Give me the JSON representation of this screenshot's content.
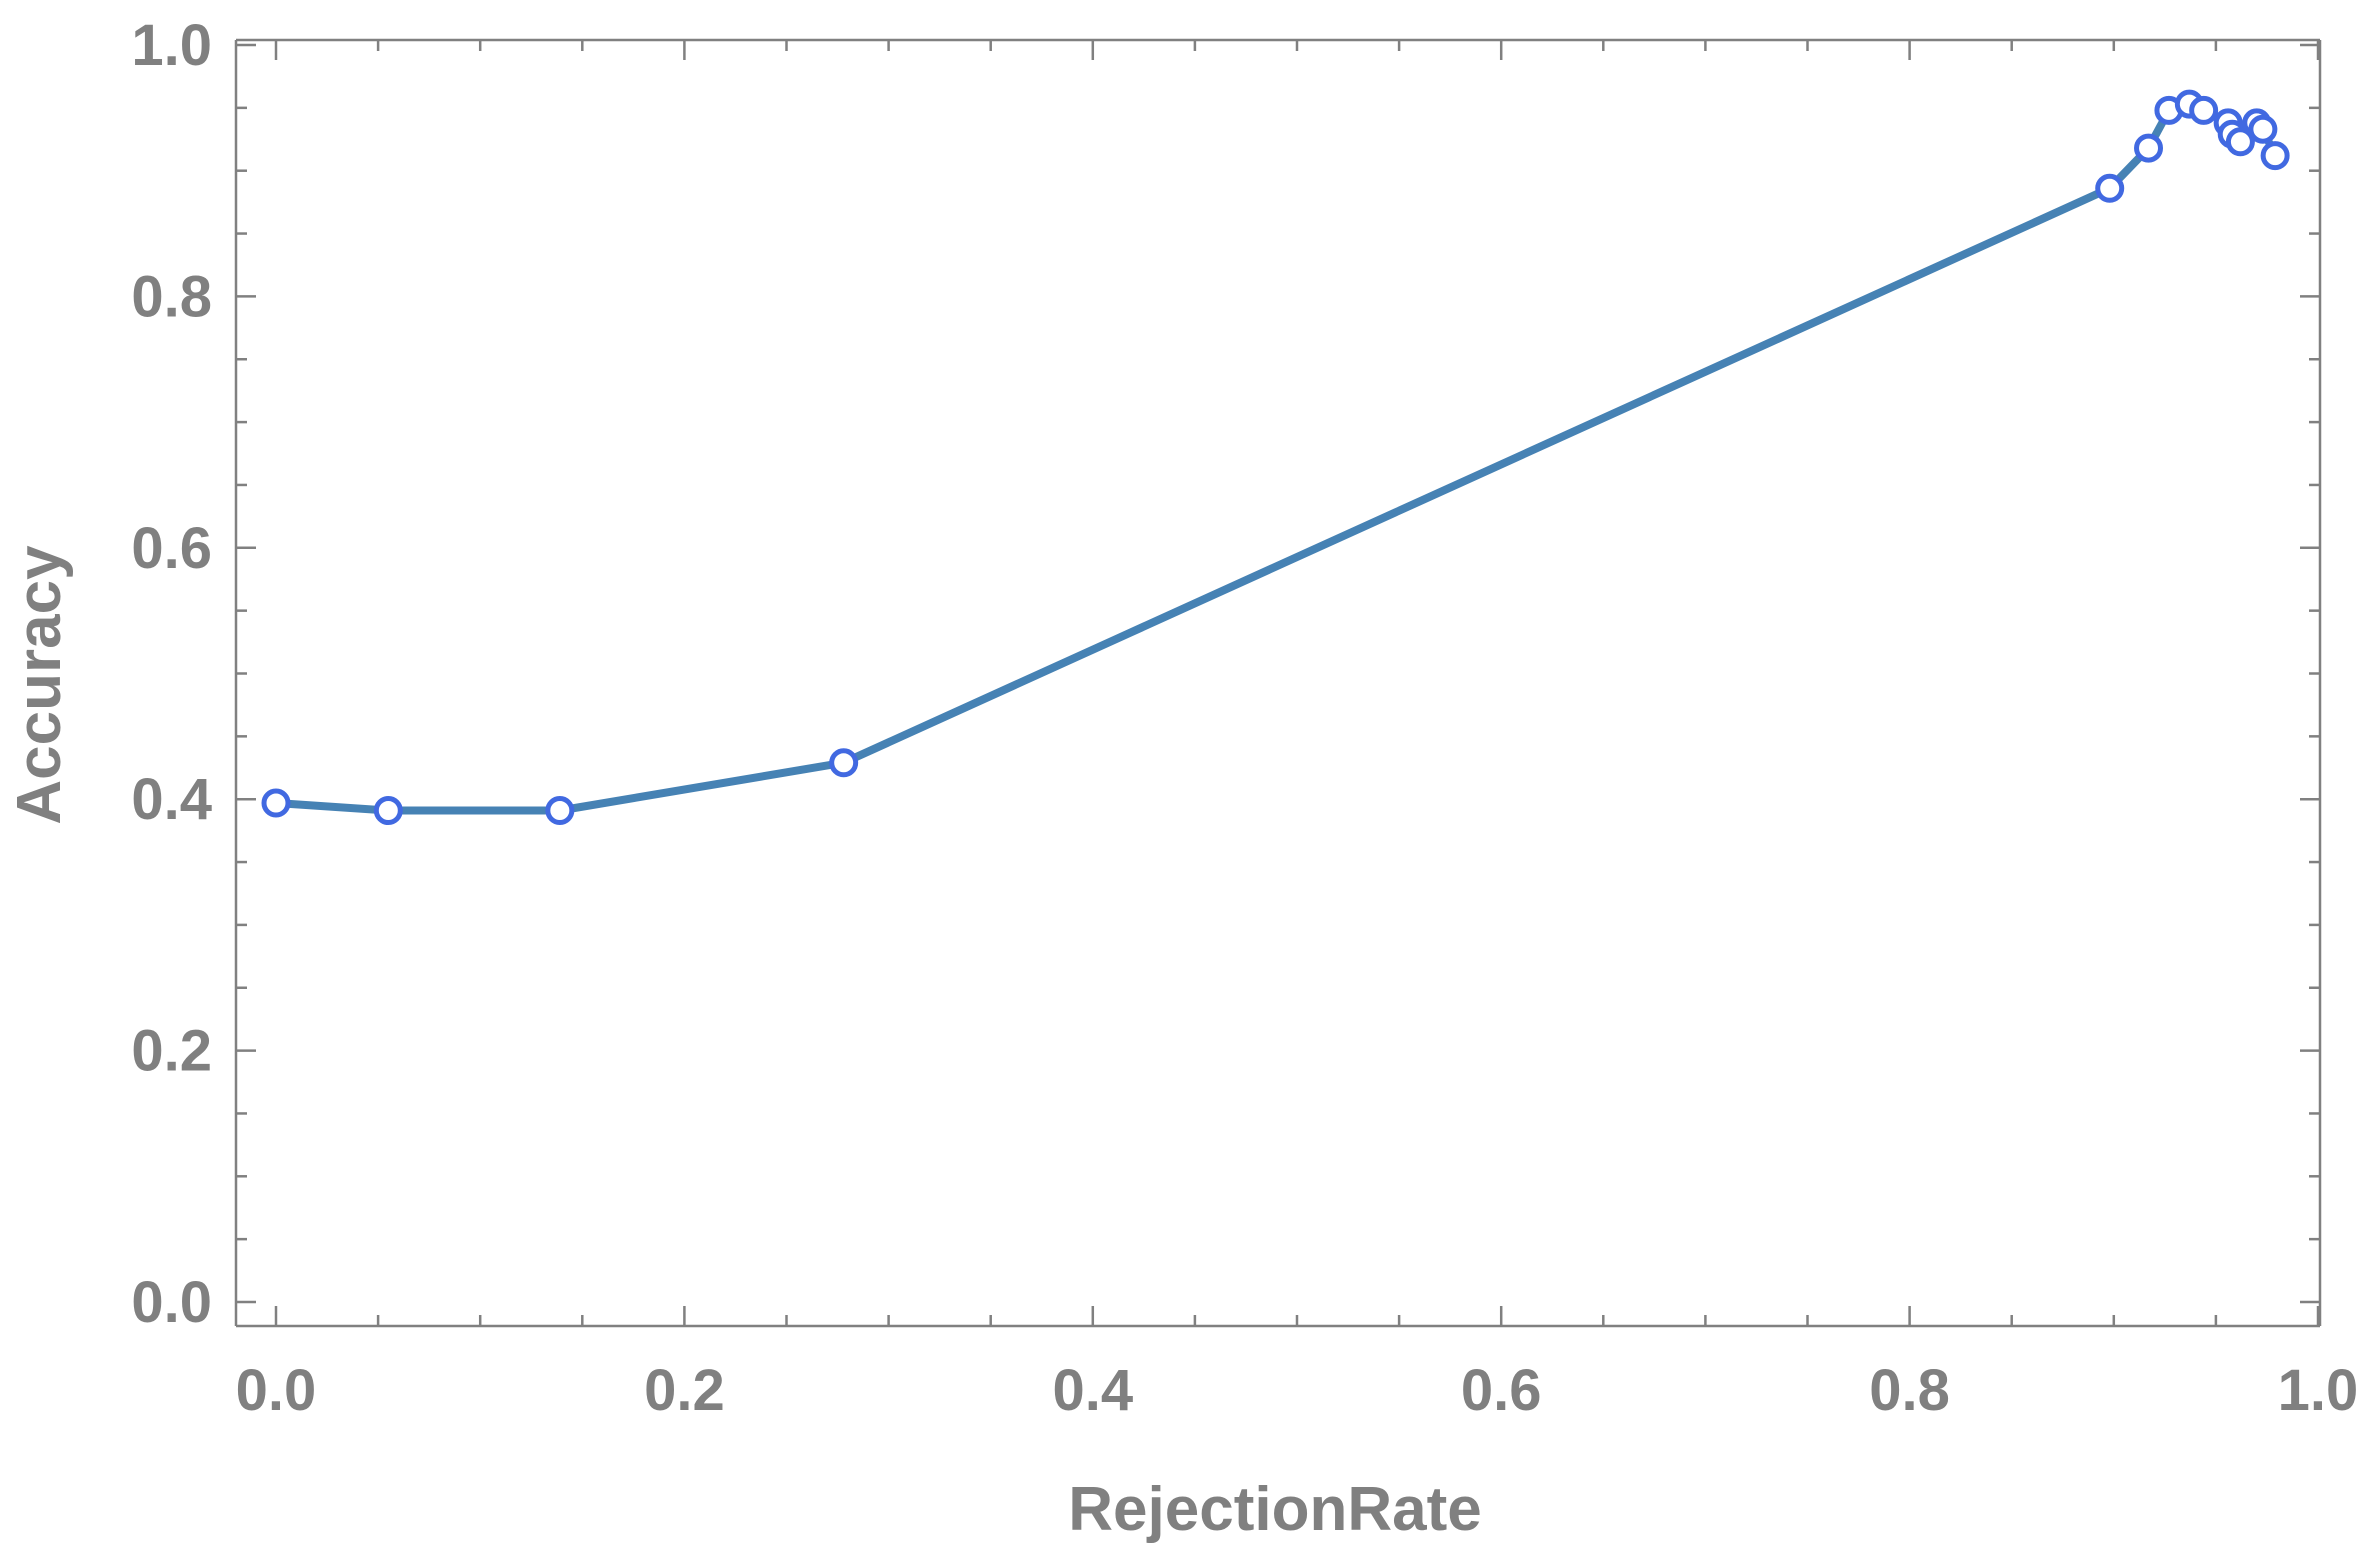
{
  "chart_data": {
    "type": "line",
    "title": "",
    "xlabel": "RejectionRate",
    "ylabel": "Accuracy",
    "xlim": [
      0.0,
      1.0
    ],
    "ylim": [
      0.0,
      1.0
    ],
    "x_ticks": [
      "0.0",
      "0.2",
      "0.4",
      "0.6",
      "0.8",
      "1.0"
    ],
    "y_ticks": [
      "0.0",
      "0.2",
      "0.4",
      "0.6",
      "0.8",
      "1.0"
    ],
    "grid": false,
    "legend": "none",
    "series": [
      {
        "line_color": "#4682b4",
        "marker_color": "#4169e1",
        "marker": "open-circle",
        "points": [
          {
            "x": 0.0,
            "y": 0.397
          },
          {
            "x": 0.055,
            "y": 0.391
          },
          {
            "x": 0.139,
            "y": 0.391
          },
          {
            "x": 0.278,
            "y": 0.429
          },
          {
            "x": 0.898,
            "y": 0.886
          },
          {
            "x": 0.917,
            "y": 0.918
          },
          {
            "x": 0.927,
            "y": 0.948
          },
          {
            "x": 0.937,
            "y": 0.953
          },
          {
            "x": 0.944,
            "y": 0.948
          },
          {
            "x": 0.956,
            "y": 0.938
          },
          {
            "x": 0.958,
            "y": 0.929
          },
          {
            "x": 0.962,
            "y": 0.923
          },
          {
            "x": 0.97,
            "y": 0.938
          },
          {
            "x": 0.973,
            "y": 0.933
          },
          {
            "x": 0.979,
            "y": 0.912
          }
        ]
      }
    ]
  }
}
